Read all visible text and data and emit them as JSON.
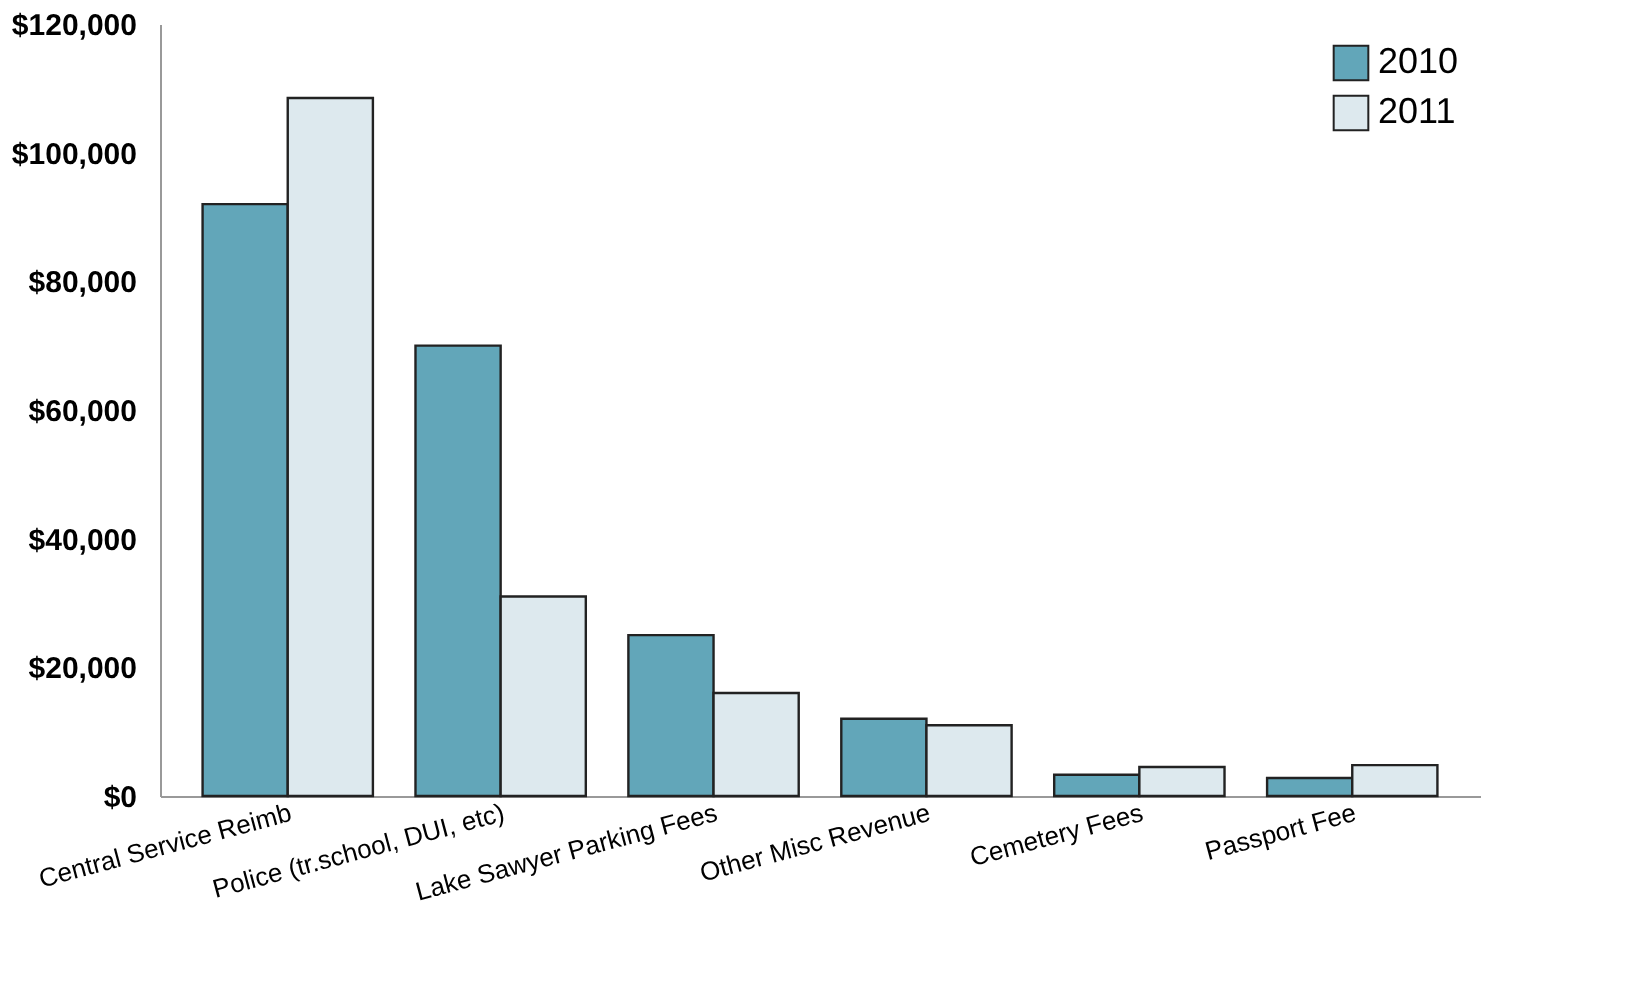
{
  "chart_data": {
    "type": "bar",
    "categories": [
      "Central Service Reimb",
      "Police (tr.school, DUI, etc)",
      "Lake Sawyer Parking Fees",
      "Other Misc Revenue",
      "Cemetery Fees",
      "Passport Fee"
    ],
    "series": [
      {
        "name": "2010",
        "color": "#62a6b9",
        "values": [
          92000,
          70000,
          25000,
          12000,
          3300,
          2800
        ]
      },
      {
        "name": "2011",
        "color": "#dde9ee",
        "values": [
          108500,
          31000,
          16000,
          11000,
          4500,
          4800
        ]
      }
    ],
    "ylim": [
      0,
      120000
    ],
    "yticks": [
      {
        "value": 0,
        "label": "$0"
      },
      {
        "value": 20000,
        "label": "$20,000"
      },
      {
        "value": 40000,
        "label": "$40,000"
      },
      {
        "value": 60000,
        "label": "$60,000"
      },
      {
        "value": 80000,
        "label": "$80,000"
      },
      {
        "value": 100000,
        "label": "$100,000"
      },
      {
        "value": 120000,
        "label": "$120,000"
      }
    ],
    "grid": false,
    "legend": "top right"
  }
}
